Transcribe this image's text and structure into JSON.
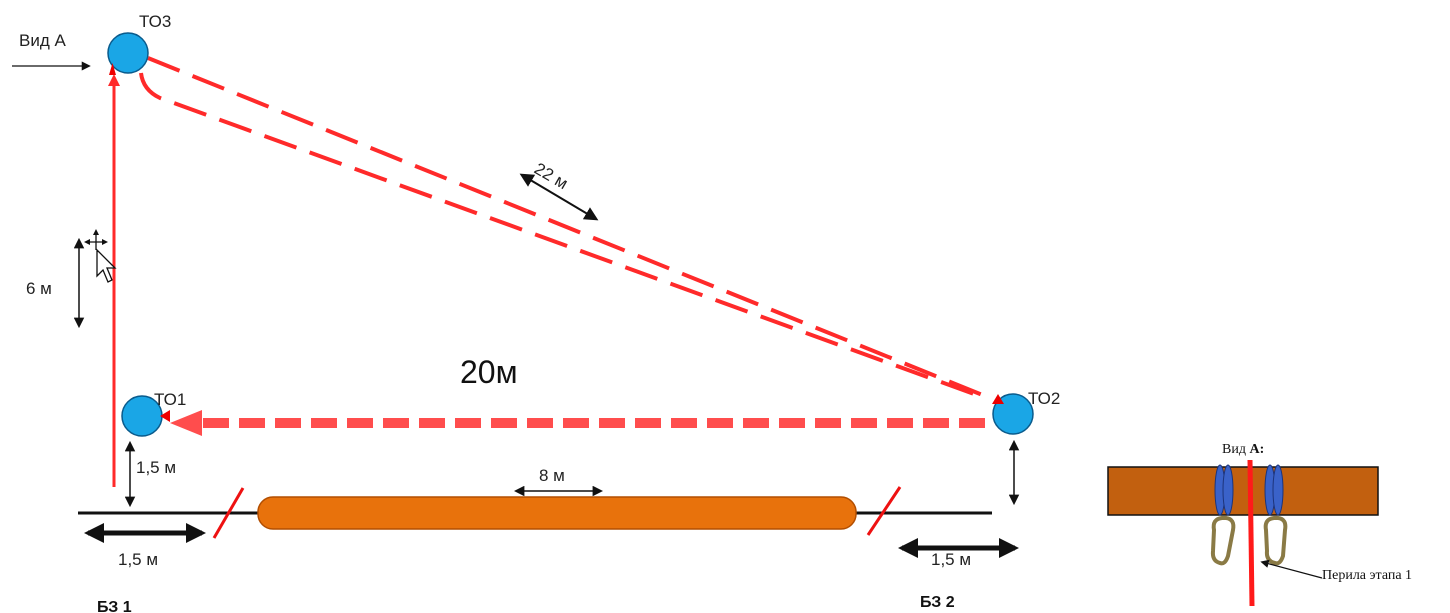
{
  "diagram": {
    "nodes": {
      "to1": "ТО1",
      "to2": "ТО2",
      "to3": "ТО3"
    },
    "view_label": "Вид А",
    "zones": {
      "bz1": "БЗ 1",
      "bz2": "БЗ 2"
    },
    "distances": {
      "traverse": "20м",
      "diagonal": "22 м",
      "vertical": "6 м",
      "to1_height": "1,5 м",
      "bz1_width": "1,5 м",
      "bz2_width": "1,5 м",
      "log_length": "8 м"
    },
    "inset": {
      "title_prefix": "Вид ",
      "title_bold": "А:",
      "rope_label": "Перила этапа 1"
    },
    "colors": {
      "rope": "#ff2a2a",
      "node": "#1aa6e6",
      "log": "#e8720c",
      "beam": "#c2600f",
      "carabiner_clip": "#3a62c9"
    }
  }
}
